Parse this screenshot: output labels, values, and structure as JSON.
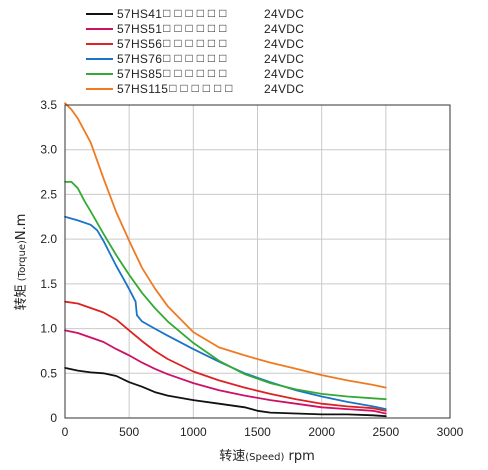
{
  "chart_data": {
    "type": "line",
    "xlabel": {
      "main": "转速",
      "paren": "(Speed)",
      "unit": " rpm"
    },
    "ylabel": {
      "main": "转矩",
      "paren": " (Torque)",
      "unit": "N.m"
    },
    "xlim": [
      0,
      3000
    ],
    "ylim": [
      0,
      3.5
    ],
    "x_ticks": [
      0,
      500,
      1000,
      1500,
      2000,
      2500,
      3000
    ],
    "y_ticks": [
      0,
      0.5,
      1.0,
      1.5,
      2.0,
      2.5,
      3.0,
      3.5
    ],
    "x_tick_labels": [
      "0",
      "500",
      "1000",
      "1500",
      "2000",
      "2500",
      "3000"
    ],
    "y_tick_labels": [
      "0",
      "0.5",
      "1.0",
      "1.5",
      "2.0",
      "2.5",
      "3.0",
      "3.5"
    ],
    "grid": true,
    "legend_position": "top",
    "series": [
      {
        "name": "57HS41",
        "name_suffix": "□ □ □ □ □ □",
        "voltage": "24VDC",
        "color": "#111111",
        "x": [
          0,
          100,
          200,
          300,
          400,
          500,
          600,
          700,
          800,
          1000,
          1200,
          1400,
          1500,
          1600,
          1800,
          2000,
          2200,
          2400,
          2500
        ],
        "y": [
          0.56,
          0.53,
          0.51,
          0.5,
          0.47,
          0.4,
          0.35,
          0.29,
          0.25,
          0.2,
          0.16,
          0.12,
          0.08,
          0.06,
          0.05,
          0.04,
          0.04,
          0.03,
          0.02
        ]
      },
      {
        "name": "57HS51",
        "name_suffix": "□ □ □ □ □ □",
        "voltage": "24VDC",
        "color": "#cc1166",
        "x": [
          0,
          100,
          200,
          300,
          400,
          500,
          600,
          700,
          800,
          1000,
          1200,
          1400,
          1600,
          1800,
          2000,
          2200,
          2400,
          2500
        ],
        "y": [
          0.98,
          0.95,
          0.9,
          0.85,
          0.77,
          0.7,
          0.62,
          0.55,
          0.49,
          0.39,
          0.31,
          0.25,
          0.2,
          0.16,
          0.12,
          0.1,
          0.08,
          0.05
        ]
      },
      {
        "name": "57HS56",
        "name_suffix": "□ □ □ □ □ □",
        "voltage": "24VDC",
        "color": "#dd2222",
        "x": [
          0,
          100,
          200,
          300,
          400,
          500,
          600,
          700,
          800,
          1000,
          1200,
          1400,
          1600,
          1800,
          2000,
          2200,
          2400,
          2500
        ],
        "y": [
          1.3,
          1.28,
          1.23,
          1.18,
          1.1,
          0.98,
          0.86,
          0.75,
          0.66,
          0.52,
          0.42,
          0.34,
          0.27,
          0.21,
          0.16,
          0.13,
          0.11,
          0.08
        ]
      },
      {
        "name": "57HS76",
        "name_suffix": "□ □ □ □ □ □",
        "voltage": "24VDC",
        "color": "#1a73c9",
        "x": [
          0,
          100,
          200,
          250,
          300,
          350,
          400,
          450,
          500,
          550,
          560,
          600,
          700,
          800,
          1000,
          1200,
          1400,
          1600,
          1800,
          2000,
          2200,
          2400,
          2500
        ],
        "y": [
          2.25,
          2.21,
          2.16,
          2.1,
          1.98,
          1.84,
          1.7,
          1.57,
          1.44,
          1.3,
          1.15,
          1.08,
          1.0,
          0.92,
          0.77,
          0.63,
          0.5,
          0.4,
          0.31,
          0.24,
          0.18,
          0.13,
          0.1
        ]
      },
      {
        "name": "57HS85",
        "name_suffix": "□ □ □ □ □ □",
        "voltage": "24VDC",
        "color": "#33aa33",
        "x": [
          0,
          50,
          100,
          150,
          200,
          300,
          400,
          500,
          600,
          700,
          800,
          1000,
          1200,
          1400,
          1600,
          1800,
          2000,
          2200,
          2400,
          2500
        ],
        "y": [
          2.64,
          2.64,
          2.57,
          2.43,
          2.31,
          2.06,
          1.82,
          1.6,
          1.4,
          1.23,
          1.08,
          0.84,
          0.64,
          0.49,
          0.39,
          0.32,
          0.27,
          0.24,
          0.22,
          0.21
        ]
      },
      {
        "name": "57HS115",
        "name_suffix": "□ □ □ □ □ □",
        "voltage": "24VDC",
        "color": "#f07a22",
        "x": [
          0,
          50,
          100,
          200,
          300,
          400,
          500,
          600,
          700,
          800,
          1000,
          1200,
          1400,
          1600,
          1800,
          2000,
          2200,
          2400,
          2500
        ],
        "y": [
          3.52,
          3.45,
          3.35,
          3.08,
          2.68,
          2.3,
          1.98,
          1.68,
          1.45,
          1.25,
          0.96,
          0.79,
          0.7,
          0.62,
          0.55,
          0.48,
          0.42,
          0.37,
          0.34
        ]
      }
    ]
  }
}
